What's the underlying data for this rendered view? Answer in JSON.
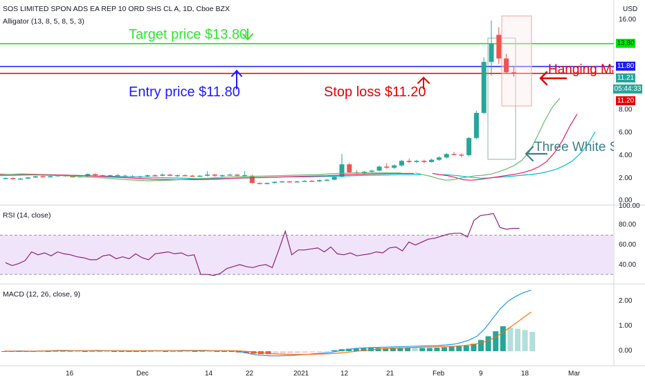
{
  "header": {
    "title": "SOS LIMITED SPON ADS EA REP 10 ORD SHS CL A, 1D, Cboe BZX",
    "indicator": "Alligator (13, 8, 5, 8, 5, 3)",
    "currency": "USD"
  },
  "annotations": {
    "target": "Target price $13.80",
    "entry": "Entry price $11.80",
    "stop": "Stop loss $11.20",
    "hanging": "Hanging Man",
    "three_white": "Three White Soldiers"
  },
  "price_tags": {
    "target": "13.80",
    "entry": "11.80",
    "last": "11.21",
    "countdown": "05:44:33",
    "stop": "11.20"
  },
  "colors": {
    "target_line": "#00e600",
    "entry_line": "#1a1aff",
    "stop_line": "#e60000",
    "up_candle": "#26a69a",
    "down_candle": "#ef5350",
    "rsi_line": "#8e1f7a",
    "rsi_band": "#f0e4fb",
    "macd_line": "#2196f3",
    "signal_line": "#ff6d00",
    "alligator_jaw": "#00bcd4",
    "alligator_teeth": "#e91e63",
    "alligator_lips": "#66bb6a"
  },
  "chart_data": [
    {
      "type": "candlestick",
      "title": "SOS LIMITED SPON ADS EA REP 10 ORD SHS CL A, 1D, Cboe BZX",
      "ylabel": "USD",
      "y_ticks": [
        "16.00",
        "8.00",
        "6.00",
        "4.00",
        "2.00",
        "0.00"
      ],
      "y_tick_values": [
        16,
        8,
        6,
        4,
        2,
        0
      ],
      "x_ticks": [
        "16",
        "Dec",
        "14",
        "22",
        "2021",
        "12",
        "21",
        "Feb",
        "9",
        "18",
        "Mar"
      ],
      "levels": {
        "target": 13.8,
        "entry": 11.8,
        "stop": 11.2
      },
      "candles": [
        [
          1.95,
          2.05,
          1.9,
          2.0
        ],
        [
          2.0,
          2.05,
          1.85,
          1.9
        ],
        [
          1.9,
          2.0,
          1.85,
          1.95
        ],
        [
          1.95,
          2.1,
          1.9,
          2.05
        ],
        [
          2.05,
          2.2,
          2.0,
          2.15
        ],
        [
          2.15,
          2.25,
          2.05,
          2.1
        ],
        [
          2.1,
          2.2,
          2.05,
          2.15
        ],
        [
          2.15,
          2.3,
          2.1,
          2.25
        ],
        [
          2.25,
          2.3,
          2.1,
          2.15
        ],
        [
          2.15,
          2.25,
          2.05,
          2.1
        ],
        [
          2.1,
          2.2,
          2.05,
          2.15
        ],
        [
          2.15,
          2.4,
          2.1,
          2.35
        ],
        [
          2.35,
          2.4,
          2.2,
          2.25
        ],
        [
          2.25,
          2.3,
          2.1,
          2.2
        ],
        [
          2.2,
          2.3,
          2.15,
          2.25
        ],
        [
          2.25,
          2.35,
          2.15,
          2.2
        ],
        [
          2.2,
          2.3,
          2.1,
          2.15
        ],
        [
          2.15,
          2.25,
          2.05,
          2.1
        ],
        [
          2.1,
          2.2,
          2.0,
          2.15
        ],
        [
          2.15,
          2.3,
          2.1,
          2.25
        ],
        [
          2.25,
          2.35,
          2.15,
          2.2
        ],
        [
          2.2,
          2.4,
          2.15,
          2.3
        ],
        [
          2.3,
          2.35,
          2.15,
          2.2
        ],
        [
          2.2,
          2.3,
          2.1,
          2.25
        ],
        [
          2.25,
          2.3,
          2.15,
          2.2
        ],
        [
          2.2,
          2.3,
          2.1,
          2.15
        ],
        [
          2.15,
          2.25,
          2.1,
          2.2
        ],
        [
          2.2,
          2.6,
          2.15,
          2.3
        ],
        [
          2.3,
          2.35,
          2.1,
          2.2
        ],
        [
          2.2,
          2.3,
          2.1,
          2.25
        ],
        [
          2.25,
          2.35,
          2.2,
          2.3
        ],
        [
          2.3,
          2.35,
          2.15,
          2.2
        ],
        [
          2.2,
          2.6,
          2.15,
          2.25
        ],
        [
          2.2,
          2.3,
          1.5,
          1.55
        ],
        [
          1.55,
          1.6,
          1.45,
          1.5
        ],
        [
          1.5,
          1.6,
          1.45,
          1.55
        ],
        [
          1.55,
          1.7,
          1.5,
          1.65
        ],
        [
          1.65,
          1.75,
          1.6,
          1.7
        ],
        [
          1.7,
          1.75,
          1.6,
          1.65
        ],
        [
          1.65,
          1.75,
          1.6,
          1.7
        ],
        [
          1.7,
          1.8,
          1.65,
          1.75
        ],
        [
          1.75,
          1.8,
          1.65,
          1.7
        ],
        [
          1.7,
          1.85,
          1.65,
          1.8
        ],
        [
          1.8,
          1.9,
          1.75,
          1.85
        ],
        [
          1.85,
          2.2,
          1.8,
          2.1
        ],
        [
          2.1,
          4.1,
          2.05,
          3.2
        ],
        [
          3.2,
          3.3,
          2.4,
          2.5
        ],
        [
          2.5,
          2.7,
          2.3,
          2.4
        ],
        [
          2.4,
          2.6,
          2.3,
          2.55
        ],
        [
          2.55,
          2.7,
          2.45,
          2.65
        ],
        [
          2.65,
          3.1,
          2.6,
          3.0
        ],
        [
          3.0,
          3.3,
          2.8,
          2.9
        ],
        [
          2.9,
          3.2,
          2.8,
          3.1
        ],
        [
          3.1,
          3.6,
          3.0,
          3.5
        ],
        [
          3.5,
          3.7,
          3.3,
          3.4
        ],
        [
          3.4,
          3.6,
          3.3,
          3.5
        ],
        [
          3.5,
          3.6,
          3.3,
          3.4
        ],
        [
          3.4,
          3.7,
          3.35,
          3.6
        ],
        [
          3.6,
          3.9,
          3.5,
          3.8
        ],
        [
          3.8,
          4.2,
          3.7,
          4.1
        ],
        [
          4.1,
          4.3,
          4.0,
          4.05
        ],
        [
          4.05,
          4.15,
          3.8,
          4.0
        ],
        [
          4.0,
          5.6,
          3.9,
          5.5
        ],
        [
          5.5,
          7.9,
          5.4,
          7.7
        ],
        [
          7.7,
          12.6,
          7.6,
          12.2
        ],
        [
          12.2,
          15.9,
          11.0,
          13.8
        ],
        [
          14.6,
          15.3,
          12.0,
          12.5
        ],
        [
          12.5,
          12.9,
          11.2,
          11.3
        ],
        [
          11.3,
          11.8,
          10.9,
          11.21
        ]
      ],
      "alligator": {
        "jaw": [
          2.3,
          2.26,
          2.2,
          2.12,
          2.04,
          1.98,
          2.0,
          2.05,
          2.1,
          2.15,
          2.22,
          2.28,
          2.34,
          2.45,
          2.6,
          2.8,
          3.1,
          3.5,
          4.1,
          4.9,
          6.05
        ],
        "teeth": [
          2.4,
          2.3,
          2.2,
          2.05,
          1.85,
          1.8,
          1.85,
          1.95,
          2.05,
          2.15,
          2.25,
          2.35,
          2.5,
          2.7,
          3.0,
          3.45,
          4.2,
          5.2,
          6.5,
          7.6
        ],
        "lips": [
          2.45,
          2.3,
          2.15,
          1.95,
          1.8,
          1.85,
          2.0,
          2.1,
          2.2,
          2.25,
          2.35,
          2.55,
          2.8,
          3.1,
          3.55,
          4.3,
          5.6,
          7.0,
          8.2,
          9.0
        ]
      }
    },
    {
      "type": "line",
      "title": "RSI (14, close)",
      "y_ticks": [
        "100.00",
        "80.00",
        "60.00",
        "40.00"
      ],
      "y_tick_values": [
        100,
        80,
        60,
        40
      ],
      "band": [
        30,
        70
      ],
      "values": [
        42,
        39,
        41,
        44,
        53,
        50,
        52,
        49,
        53,
        51,
        50,
        48,
        47,
        45,
        45,
        49,
        50,
        46,
        48,
        46,
        51,
        47,
        45,
        51,
        52,
        53,
        51,
        52,
        49,
        50,
        30,
        30,
        29,
        31,
        36,
        38,
        40,
        38,
        37,
        39,
        40,
        37,
        55,
        74,
        50,
        55,
        55,
        56,
        57,
        53,
        58,
        51,
        50,
        52,
        49,
        50,
        51,
        53,
        52,
        57,
        58,
        54,
        63,
        60,
        63,
        66,
        67,
        69,
        71,
        72,
        72,
        68,
        85,
        90,
        91,
        92,
        78,
        76,
        77,
        77
      ]
    },
    {
      "type": "bar",
      "title": "MACD (12, 26, close, 9)",
      "y_ticks": [
        "2.00",
        "1.00",
        "0.00"
      ],
      "y_tick_values": [
        2,
        1,
        0
      ],
      "histogram": [
        0.0,
        0.0,
        -0.01,
        -0.02,
        -0.02,
        -0.01,
        0.0,
        0.01,
        0.01,
        0.01,
        0.0,
        0.0,
        0.01,
        0.01,
        0.0,
        0.0,
        -0.01,
        -0.01,
        0.0,
        0.0,
        0.01,
        0.0,
        0.0,
        0.01,
        0.01,
        0.0,
        0.0,
        0.01,
        0.0,
        0.0,
        0.0,
        0.0,
        -0.05,
        -0.08,
        -0.1,
        -0.12,
        -0.12,
        -0.11,
        -0.1,
        -0.09,
        -0.08,
        -0.07,
        -0.05,
        -0.04,
        -0.02,
        0.04,
        0.08,
        0.1,
        0.1,
        0.12,
        0.13,
        0.13,
        0.13,
        0.14,
        0.14,
        0.14,
        0.13,
        0.13,
        0.13,
        0.14,
        0.16,
        0.18,
        0.2,
        0.22,
        0.3,
        0.45,
        0.6,
        0.8,
        1.0,
        0.95,
        0.9,
        0.85,
        0.78
      ],
      "macd": [
        0.0,
        0.0,
        0.01,
        0.0,
        0.0,
        0.01,
        0.02,
        0.03,
        0.03,
        0.02,
        0.02,
        0.02,
        0.03,
        0.02,
        0.02,
        0.02,
        0.01,
        0.01,
        0.02,
        0.02,
        0.02,
        0.02,
        0.02,
        0.03,
        0.03,
        0.03,
        0.03,
        0.02,
        0.02,
        0.02,
        0.0,
        -0.05,
        -0.12,
        -0.16,
        -0.18,
        -0.19,
        -0.18,
        -0.17,
        -0.15,
        -0.13,
        -0.1,
        -0.08,
        -0.05,
        0.0,
        0.05,
        0.1,
        0.13,
        0.14,
        0.15,
        0.16,
        0.17,
        0.18,
        0.19,
        0.2,
        0.21,
        0.22,
        0.23,
        0.25,
        0.28,
        0.35,
        0.45,
        0.6,
        0.9,
        1.3,
        1.7,
        2.0,
        2.2,
        2.35,
        2.45
      ],
      "signal": [
        0.0,
        0.0,
        0.0,
        0.0,
        0.0,
        0.01,
        0.01,
        0.02,
        0.02,
        0.02,
        0.02,
        0.02,
        0.02,
        0.02,
        0.02,
        0.02,
        0.02,
        0.02,
        0.02,
        0.02,
        0.02,
        0.02,
        0.02,
        0.02,
        0.02,
        0.02,
        0.02,
        0.02,
        0.02,
        0.02,
        0.02,
        0.0,
        -0.03,
        -0.06,
        -0.09,
        -0.11,
        -0.12,
        -0.13,
        -0.13,
        -0.13,
        -0.12,
        -0.11,
        -0.1,
        -0.08,
        -0.05,
        -0.02,
        0.02,
        0.05,
        0.08,
        0.1,
        0.12,
        0.13,
        0.14,
        0.15,
        0.16,
        0.17,
        0.18,
        0.19,
        0.2,
        0.22,
        0.25,
        0.3,
        0.38,
        0.5,
        0.68,
        0.9,
        1.12,
        1.35,
        1.57
      ]
    }
  ]
}
